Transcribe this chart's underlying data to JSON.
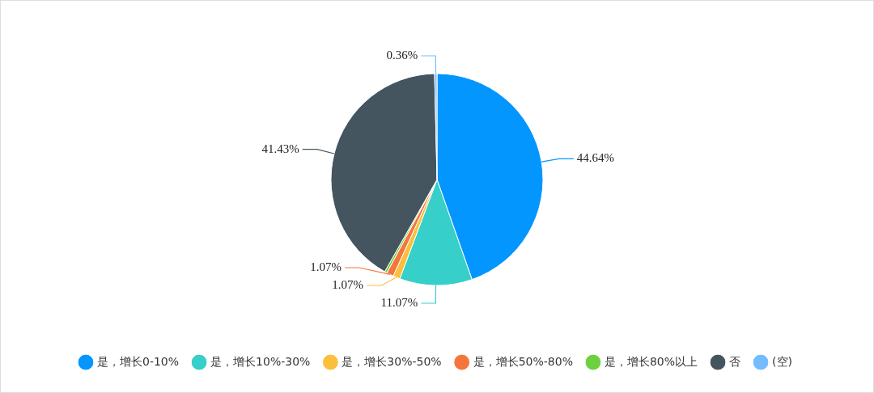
{
  "chart_data": {
    "type": "pie",
    "categories": [
      "是，增长0-10%",
      "是，增长10%-30%",
      "是，增长30%-50%",
      "是，增长50%-80%",
      "是，增长80%以上",
      "否",
      "(空)"
    ],
    "values": [
      44.64,
      11.07,
      1.07,
      1.07,
      0.36,
      41.43,
      0.36
    ],
    "colors": [
      "#0396ff",
      "#36cfc9",
      "#fac03d",
      "#f5763c",
      "#6dd13e",
      "#44555f",
      "#74bcff"
    ],
    "value_labels": [
      "44.64%",
      "11.07%",
      "1.07%",
      "1.07%",
      null,
      "41.43%",
      "0.36%"
    ],
    "legend": "bottom"
  }
}
